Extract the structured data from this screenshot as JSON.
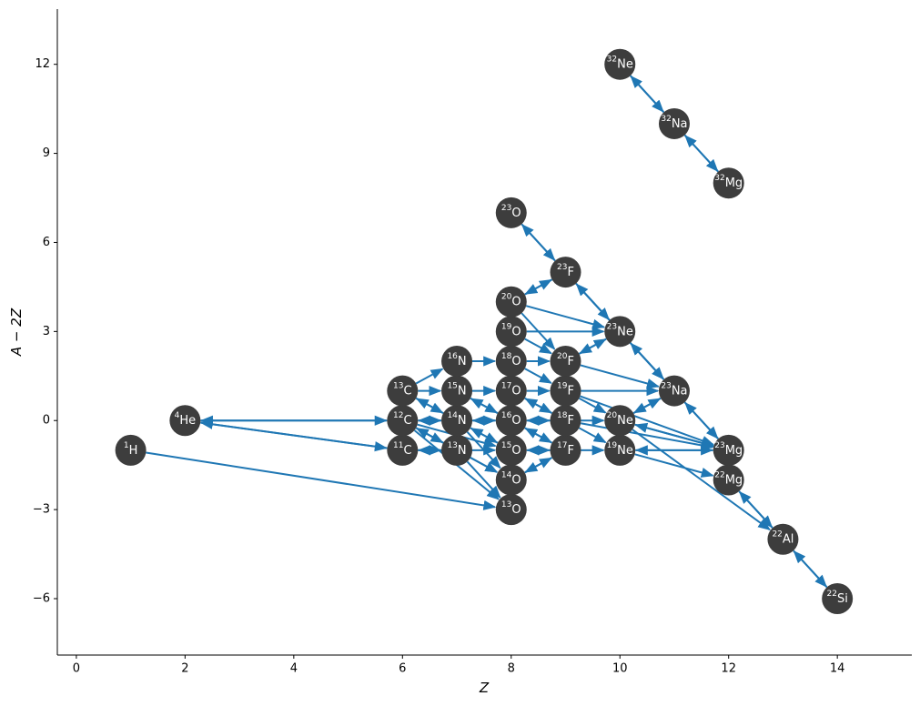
{
  "chart_data": {
    "type": "network",
    "xlabel": "Z",
    "ylabel": "A − 2Z",
    "xlim": [
      -0.35,
      15.37
    ],
    "ylim": [
      -7.9,
      13.86
    ],
    "xticks": [
      0,
      2,
      4,
      6,
      8,
      10,
      12,
      14
    ],
    "yticks": [
      {
        "value": -6,
        "label": "−6"
      },
      {
        "value": -3,
        "label": "−3"
      },
      0,
      3,
      6,
      9,
      12
    ],
    "node_color": "#3d3d3d",
    "edge_color": "#1f77b4",
    "nodes": [
      {
        "mass": "1",
        "symbol": "H",
        "x": 1,
        "y": -1
      },
      {
        "mass": "4",
        "symbol": "He",
        "x": 2,
        "y": 0
      },
      {
        "mass": "11",
        "symbol": "C",
        "x": 6,
        "y": -1
      },
      {
        "mass": "12",
        "symbol": "C",
        "x": 6,
        "y": 0
      },
      {
        "mass": "13",
        "symbol": "C",
        "x": 6,
        "y": 1
      },
      {
        "mass": "13",
        "symbol": "N",
        "x": 7,
        "y": -1
      },
      {
        "mass": "14",
        "symbol": "N",
        "x": 7,
        "y": 0
      },
      {
        "mass": "15",
        "symbol": "N",
        "x": 7,
        "y": 1
      },
      {
        "mass": "16",
        "symbol": "N",
        "x": 7,
        "y": 2
      },
      {
        "mass": "13",
        "symbol": "O",
        "x": 8,
        "y": -3
      },
      {
        "mass": "14",
        "symbol": "O",
        "x": 8,
        "y": -2
      },
      {
        "mass": "15",
        "symbol": "O",
        "x": 8,
        "y": -1
      },
      {
        "mass": "16",
        "symbol": "O",
        "x": 8,
        "y": 0
      },
      {
        "mass": "17",
        "symbol": "O",
        "x": 8,
        "y": 1
      },
      {
        "mass": "18",
        "symbol": "O",
        "x": 8,
        "y": 2
      },
      {
        "mass": "19",
        "symbol": "O",
        "x": 8,
        "y": 3
      },
      {
        "mass": "20",
        "symbol": "O",
        "x": 8,
        "y": 4
      },
      {
        "mass": "23",
        "symbol": "O",
        "x": 8,
        "y": 7
      },
      {
        "mass": "17",
        "symbol": "F",
        "x": 9,
        "y": -1
      },
      {
        "mass": "18",
        "symbol": "F",
        "x": 9,
        "y": 0
      },
      {
        "mass": "19",
        "symbol": "F",
        "x": 9,
        "y": 1
      },
      {
        "mass": "20",
        "symbol": "F",
        "x": 9,
        "y": 2
      },
      {
        "mass": "23",
        "symbol": "F",
        "x": 9,
        "y": 5
      },
      {
        "mass": "19",
        "symbol": "Ne",
        "x": 10,
        "y": -1
      },
      {
        "mass": "20",
        "symbol": "Ne",
        "x": 10,
        "y": 0
      },
      {
        "mass": "23",
        "symbol": "Ne",
        "x": 10,
        "y": 3
      },
      {
        "mass": "32",
        "symbol": "Ne",
        "x": 10,
        "y": 12
      },
      {
        "mass": "23",
        "symbol": "Na",
        "x": 11,
        "y": 1
      },
      {
        "mass": "32",
        "symbol": "Na",
        "x": 11,
        "y": 10
      },
      {
        "mass": "22",
        "symbol": "Mg",
        "x": 12,
        "y": -2
      },
      {
        "mass": "23",
        "symbol": "Mg",
        "x": 12,
        "y": -1
      },
      {
        "mass": "32",
        "symbol": "Mg",
        "x": 12,
        "y": 8
      },
      {
        "mass": "22",
        "symbol": "Al",
        "x": 13,
        "y": -4
      },
      {
        "mass": "22",
        "symbol": "Si",
        "x": 14,
        "y": -6
      }
    ],
    "edges": [
      [
        0,
        9
      ],
      [
        1,
        3
      ],
      [
        3,
        1
      ],
      [
        1,
        2
      ],
      [
        2,
        1
      ],
      [
        3,
        4
      ],
      [
        4,
        3
      ],
      [
        3,
        5
      ],
      [
        5,
        3
      ],
      [
        3,
        6
      ],
      [
        6,
        3
      ],
      [
        4,
        6
      ],
      [
        6,
        4
      ],
      [
        4,
        7
      ],
      [
        2,
        5
      ],
      [
        5,
        2
      ],
      [
        2,
        11
      ],
      [
        3,
        11
      ],
      [
        3,
        10
      ],
      [
        3,
        9
      ],
      [
        5,
        6
      ],
      [
        6,
        5
      ],
      [
        6,
        7
      ],
      [
        7,
        6
      ],
      [
        7,
        8
      ],
      [
        8,
        7
      ],
      [
        6,
        11
      ],
      [
        11,
        6
      ],
      [
        6,
        12
      ],
      [
        12,
        6
      ],
      [
        7,
        12
      ],
      [
        12,
        7
      ],
      [
        7,
        13
      ],
      [
        8,
        14
      ],
      [
        4,
        8
      ],
      [
        5,
        10
      ],
      [
        5,
        9
      ],
      [
        6,
        10
      ],
      [
        11,
        12
      ],
      [
        12,
        11
      ],
      [
        12,
        13
      ],
      [
        13,
        12
      ],
      [
        13,
        14
      ],
      [
        14,
        13
      ],
      [
        14,
        15
      ],
      [
        15,
        14
      ],
      [
        10,
        11
      ],
      [
        11,
        10
      ],
      [
        9,
        10
      ],
      [
        12,
        18
      ],
      [
        18,
        12
      ],
      [
        12,
        19
      ],
      [
        19,
        12
      ],
      [
        13,
        19
      ],
      [
        19,
        13
      ],
      [
        13,
        20
      ],
      [
        14,
        20
      ],
      [
        14,
        21
      ],
      [
        15,
        21
      ],
      [
        16,
        21
      ],
      [
        16,
        25
      ],
      [
        15,
        25
      ],
      [
        16,
        22
      ],
      [
        22,
        16
      ],
      [
        17,
        22
      ],
      [
        22,
        17
      ],
      [
        22,
        25
      ],
      [
        25,
        22
      ],
      [
        21,
        25
      ],
      [
        25,
        21
      ],
      [
        22,
        27
      ],
      [
        11,
        18
      ],
      [
        18,
        11
      ],
      [
        10,
        18
      ],
      [
        18,
        10
      ],
      [
        18,
        19
      ],
      [
        19,
        18
      ],
      [
        19,
        20
      ],
      [
        20,
        19
      ],
      [
        20,
        21
      ],
      [
        21,
        20
      ],
      [
        18,
        23
      ],
      [
        19,
        24
      ],
      [
        20,
        24
      ],
      [
        20,
        27
      ],
      [
        21,
        27
      ],
      [
        19,
        23
      ],
      [
        23,
        24
      ],
      [
        24,
        23
      ],
      [
        23,
        30
      ],
      [
        30,
        23
      ],
      [
        24,
        30
      ],
      [
        30,
        24
      ],
      [
        24,
        27
      ],
      [
        27,
        24
      ],
      [
        25,
        27
      ],
      [
        27,
        25
      ],
      [
        27,
        30
      ],
      [
        30,
        27
      ],
      [
        23,
        29
      ],
      [
        24,
        32
      ],
      [
        29,
        32
      ],
      [
        32,
        29
      ],
      [
        32,
        33
      ],
      [
        33,
        32
      ],
      [
        26,
        28
      ],
      [
        28,
        26
      ],
      [
        28,
        31
      ],
      [
        31,
        28
      ],
      [
        20,
        30
      ],
      [
        19,
        30
      ]
    ]
  }
}
